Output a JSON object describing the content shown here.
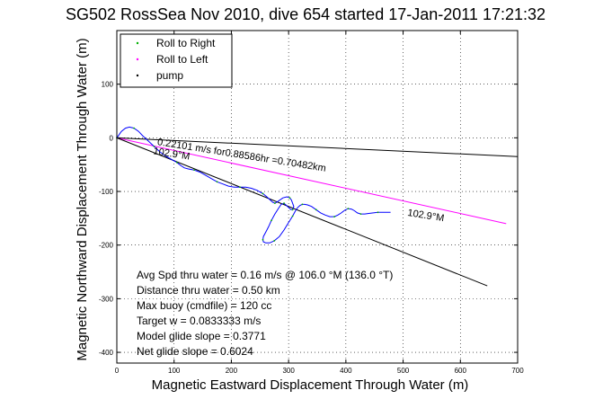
{
  "chart_data": {
    "type": "line",
    "title": "SG502 RossSea Nov 2010, dive 654 started 17-Jan-2011 17:21:32",
    "xlabel": "Magnetic Eastward Displacement Through Water (m)",
    "ylabel": "Magnetic Northward Displacement Through Water (m)",
    "xlim": [
      0,
      700
    ],
    "ylim": [
      -420,
      200
    ],
    "xticks": [
      0,
      100,
      200,
      300,
      400,
      500,
      600,
      700
    ],
    "yticks": [
      -400,
      -300,
      -200,
      -100,
      0,
      100
    ],
    "grid": true,
    "legend_position": "top-left",
    "legend": [
      {
        "label": "Roll to Right",
        "color": "#00b000"
      },
      {
        "label": "Roll to Left",
        "color": "#ff00ff"
      },
      {
        "label": "pump",
        "color": "#000000"
      }
    ],
    "series": [
      {
        "name": "track",
        "color": "#0000ff",
        "x": [
          0,
          8,
          15,
          22,
          30,
          38,
          45,
          55,
          65,
          75,
          85,
          95,
          105,
          112,
          118,
          125,
          135,
          145,
          155,
          165,
          175,
          185,
          195,
          205,
          215,
          225,
          235,
          245,
          255,
          262,
          268,
          272,
          276,
          282,
          290,
          297,
          302,
          305,
          307,
          309,
          307,
          304,
          300,
          296,
          292,
          287,
          282,
          276,
          270,
          265,
          260,
          256,
          255,
          256,
          260,
          267,
          275,
          284,
          292,
          300,
          307,
          312,
          316,
          320,
          324,
          328,
          333,
          340,
          348,
          356,
          364,
          372,
          380,
          386,
          392,
          398,
          404,
          410,
          415,
          420,
          426,
          433,
          440,
          448,
          456,
          464,
          472,
          478
        ],
        "y": [
          0,
          12,
          18,
          20,
          18,
          12,
          4,
          -6,
          -16,
          -26,
          -34,
          -40,
          -46,
          -52,
          -56,
          -58,
          -60,
          -64,
          -70,
          -76,
          -82,
          -86,
          -90,
          -92,
          -92,
          -92,
          -94,
          -98,
          -104,
          -110,
          -116,
          -120,
          -122,
          -118,
          -112,
          -110,
          -112,
          -116,
          -122,
          -128,
          -134,
          -134,
          -130,
          -126,
          -122,
          -124,
          -132,
          -142,
          -154,
          -166,
          -176,
          -184,
          -190,
          -194,
          -196,
          -196,
          -192,
          -184,
          -172,
          -158,
          -146,
          -136,
          -130,
          -126,
          -124,
          -124,
          -125,
          -128,
          -134,
          -140,
          -144,
          -147,
          -147,
          -144,
          -140,
          -135,
          -132,
          -133,
          -136,
          -140,
          -142,
          -142,
          -141,
          -140,
          -139,
          -139,
          -139,
          -139
        ]
      }
    ],
    "reference_lines": [
      {
        "name": "current",
        "color": "#000000",
        "x": [
          0,
          700
        ],
        "y": [
          0,
          -35
        ]
      },
      {
        "name": "heading-magenta",
        "color": "#ff00ff",
        "x": [
          0,
          680
        ],
        "y": [
          0,
          -160
        ]
      },
      {
        "name": "heading-black",
        "color": "#000000",
        "x": [
          0,
          647
        ],
        "y": [
          0,
          -276
        ]
      }
    ],
    "annotations": [
      {
        "text": "0.22101 m/s for0.88586hr =0.70482km",
        "x": 70,
        "y": -13,
        "rotate": 9
      },
      {
        "text": "102.9°M",
        "x": 63,
        "y": -30,
        "rotate": 9
      },
      {
        "text": "102.9°M",
        "x": 507,
        "y": -145,
        "rotate": 9
      }
    ],
    "stats": [
      "Avg Spd thru water =  0.16 m/s @ 106.0    °M (136.0 °T)",
      "Distance thru water =  0.50 km",
      "Max buoy (cmdfile) = 120 cc",
      "Target w = 0.0833333 m/s",
      "Model glide slope = 0.3771",
      "Net glide slope = 0.6024"
    ]
  }
}
